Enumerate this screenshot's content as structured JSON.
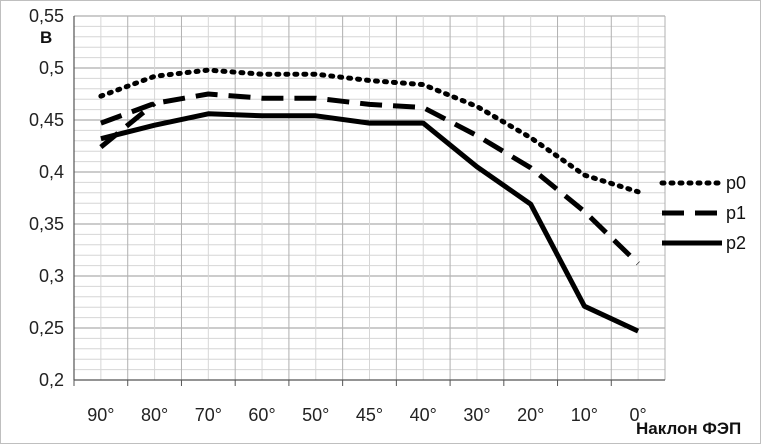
{
  "chart_data": {
    "type": "line",
    "title": "",
    "ylabel": "В",
    "xlabel": "Наклон ФЭП",
    "categories": [
      "90°",
      "80°",
      "70°",
      "60°",
      "50°",
      "45°",
      "40°",
      "30°",
      "20°",
      "10°",
      "0°"
    ],
    "yticks": [
      "0,2",
      "0,25",
      "0,3",
      "0,35",
      "0,4",
      "0,45",
      "0,5",
      "0,55"
    ],
    "ylim": [
      0.2,
      0.55
    ],
    "grid": true,
    "legend_position": "right",
    "series": [
      {
        "name": "p0",
        "style": "dotted",
        "color": "#000000",
        "values": [
          0.473,
          0.492,
          0.498,
          0.494,
          0.494,
          0.488,
          0.484,
          0.463,
          0.433,
          0.397,
          0.381
        ]
      },
      {
        "name": "p1",
        "style": "dashed",
        "color": "#000000",
        "values": [
          0.447,
          0.466,
          0.475,
          0.471,
          0.471,
          0.465,
          0.462,
          0.435,
          0.404,
          0.362,
          0.312
        ],
        "extra_segment": [
          0.424,
          0.466
        ]
      },
      {
        "name": "p2",
        "style": "solid",
        "color": "#000000",
        "values": [
          0.432,
          0.445,
          0.456,
          0.454,
          0.454,
          0.447,
          0.447,
          0.405,
          0.369,
          0.271,
          0.247
        ]
      }
    ]
  }
}
